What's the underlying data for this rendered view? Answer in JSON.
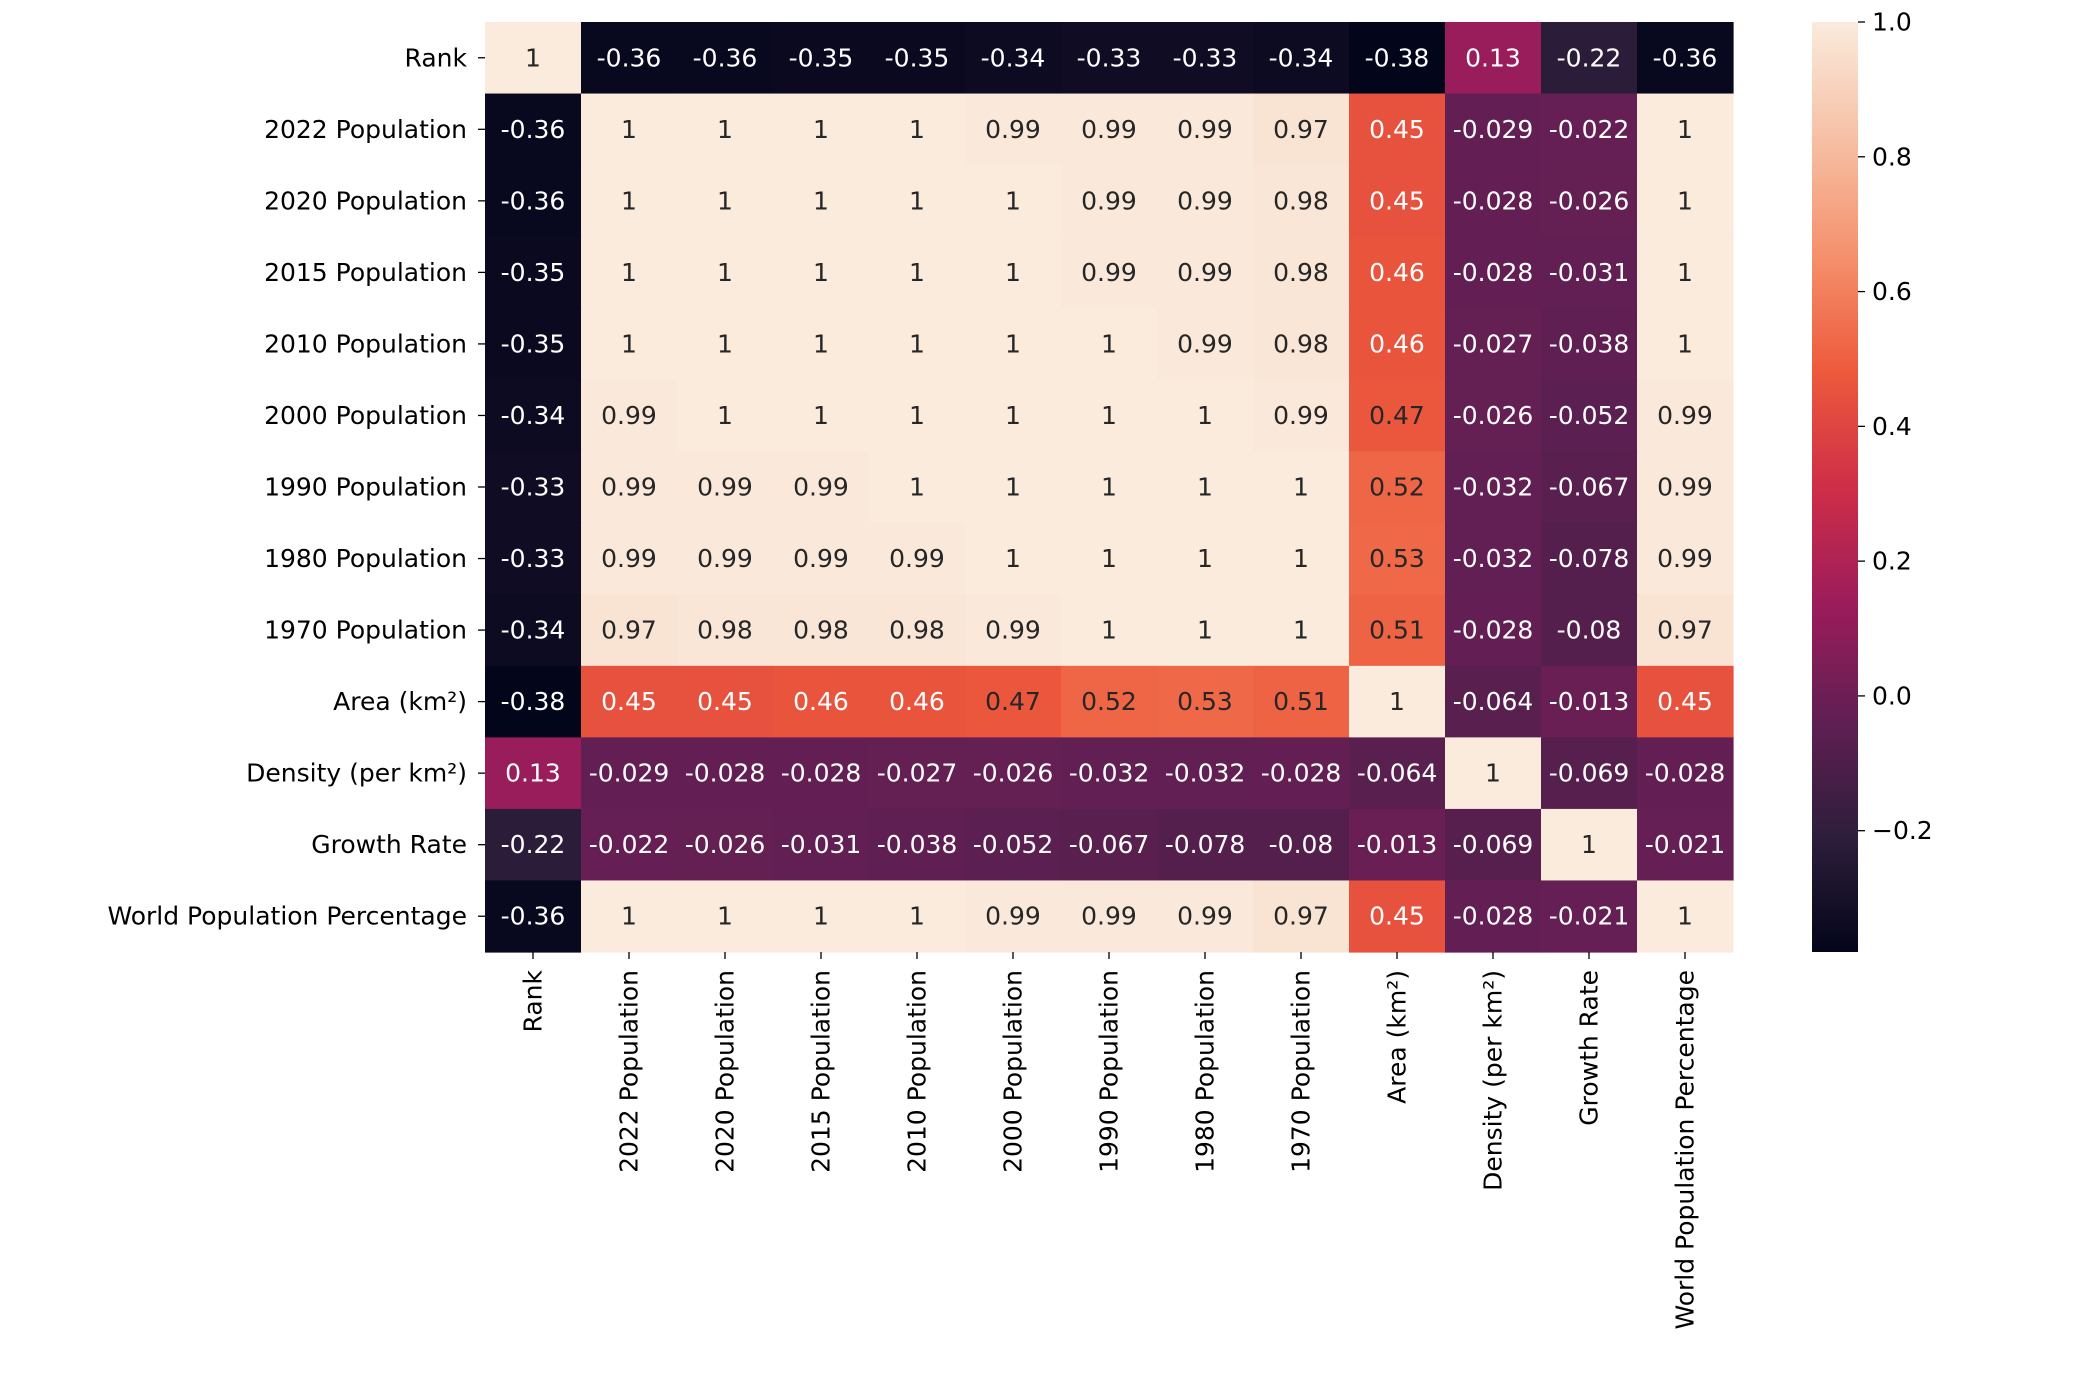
{
  "chart_data": {
    "type": "heatmap",
    "title": "",
    "xlabel": "",
    "ylabel": "",
    "rows": [
      "Rank",
      "2022 Population",
      "2020 Population",
      "2015 Population",
      "2010 Population",
      "2000 Population",
      "1990 Population",
      "1980 Population",
      "1970 Population",
      "Area (km²)",
      "Density (per km²)",
      "Growth Rate",
      "World Population Percentage"
    ],
    "columns": [
      "Rank",
      "2022 Population",
      "2020 Population",
      "2015 Population",
      "2010 Population",
      "2000 Population",
      "1990 Population",
      "1980 Population",
      "1970 Population",
      "Area (km²)",
      "Density (per km²)",
      "Growth Rate",
      "World Population Percentage"
    ],
    "values": [
      [
        1,
        -0.36,
        -0.36,
        -0.35,
        -0.35,
        -0.34,
        -0.33,
        -0.33,
        -0.34,
        -0.38,
        0.13,
        -0.22,
        -0.36
      ],
      [
        -0.36,
        1,
        1,
        1,
        1,
        0.99,
        0.99,
        0.99,
        0.97,
        0.45,
        -0.029,
        -0.022,
        1
      ],
      [
        -0.36,
        1,
        1,
        1,
        1,
        1,
        0.99,
        0.99,
        0.98,
        0.45,
        -0.028,
        -0.026,
        1
      ],
      [
        -0.35,
        1,
        1,
        1,
        1,
        1,
        0.99,
        0.99,
        0.98,
        0.46,
        -0.028,
        -0.031,
        1
      ],
      [
        -0.35,
        1,
        1,
        1,
        1,
        1,
        1,
        0.99,
        0.98,
        0.46,
        -0.027,
        -0.038,
        1
      ],
      [
        -0.34,
        0.99,
        1,
        1,
        1,
        1,
        1,
        1,
        0.99,
        0.47,
        -0.026,
        -0.052,
        0.99
      ],
      [
        -0.33,
        0.99,
        0.99,
        0.99,
        1,
        1,
        1,
        1,
        1,
        0.52,
        -0.032,
        -0.067,
        0.99
      ],
      [
        -0.33,
        0.99,
        0.99,
        0.99,
        0.99,
        1,
        1,
        1,
        1,
        0.53,
        -0.032,
        -0.078,
        0.99
      ],
      [
        -0.34,
        0.97,
        0.98,
        0.98,
        0.98,
        0.99,
        1,
        1,
        1,
        0.51,
        -0.028,
        -0.08,
        0.97
      ],
      [
        -0.38,
        0.45,
        0.45,
        0.46,
        0.46,
        0.47,
        0.52,
        0.53,
        0.51,
        1,
        -0.064,
        -0.013,
        0.45
      ],
      [
        0.13,
        -0.029,
        -0.028,
        -0.028,
        -0.027,
        -0.026,
        -0.032,
        -0.032,
        -0.028,
        -0.064,
        1,
        -0.069,
        -0.028
      ],
      [
        -0.22,
        -0.022,
        -0.026,
        -0.031,
        -0.038,
        -0.052,
        -0.067,
        -0.078,
        -0.08,
        -0.013,
        -0.069,
        1,
        -0.021
      ],
      [
        -0.36,
        1,
        1,
        1,
        1,
        0.99,
        0.99,
        0.99,
        0.97,
        0.45,
        -0.028,
        -0.021,
        1
      ]
    ],
    "value_labels": [
      [
        "1",
        "-0.36",
        "-0.36",
        "-0.35",
        "-0.35",
        "-0.34",
        "-0.33",
        "-0.33",
        "-0.34",
        "-0.38",
        "0.13",
        "-0.22",
        "-0.36"
      ],
      [
        "-0.36",
        "1",
        "1",
        "1",
        "1",
        "0.99",
        "0.99",
        "0.99",
        "0.97",
        "0.45",
        "-0.029",
        "-0.022",
        "1"
      ],
      [
        "-0.36",
        "1",
        "1",
        "1",
        "1",
        "1",
        "0.99",
        "0.99",
        "0.98",
        "0.45",
        "-0.028",
        "-0.026",
        "1"
      ],
      [
        "-0.35",
        "1",
        "1",
        "1",
        "1",
        "1",
        "0.99",
        "0.99",
        "0.98",
        "0.46",
        "-0.028",
        "-0.031",
        "1"
      ],
      [
        "-0.35",
        "1",
        "1",
        "1",
        "1",
        "1",
        "1",
        "0.99",
        "0.98",
        "0.46",
        "-0.027",
        "-0.038",
        "1"
      ],
      [
        "-0.34",
        "0.99",
        "1",
        "1",
        "1",
        "1",
        "1",
        "1",
        "0.99",
        "0.47",
        "-0.026",
        "-0.052",
        "0.99"
      ],
      [
        "-0.33",
        "0.99",
        "0.99",
        "0.99",
        "1",
        "1",
        "1",
        "1",
        "1",
        "0.52",
        "-0.032",
        "-0.067",
        "0.99"
      ],
      [
        "-0.33",
        "0.99",
        "0.99",
        "0.99",
        "0.99",
        "1",
        "1",
        "1",
        "1",
        "0.53",
        "-0.032",
        "-0.078",
        "0.99"
      ],
      [
        "-0.34",
        "0.97",
        "0.98",
        "0.98",
        "0.98",
        "0.99",
        "1",
        "1",
        "1",
        "0.51",
        "-0.028",
        "-0.08",
        "0.97"
      ],
      [
        "-0.38",
        "0.45",
        "0.45",
        "0.46",
        "0.46",
        "0.47",
        "0.52",
        "0.53",
        "0.51",
        "1",
        "-0.064",
        "-0.013",
        "0.45"
      ],
      [
        "0.13",
        "-0.029",
        "-0.028",
        "-0.028",
        "-0.027",
        "-0.026",
        "-0.032",
        "-0.032",
        "-0.028",
        "-0.064",
        "1",
        "-0.069",
        "-0.028"
      ],
      [
        "-0.22",
        "-0.022",
        "-0.026",
        "-0.031",
        "-0.038",
        "-0.052",
        "-0.067",
        "-0.078",
        "-0.08",
        "-0.013",
        "-0.069",
        "1",
        "-0.021"
      ],
      [
        "-0.36",
        "1",
        "1",
        "1",
        "1",
        "0.99",
        "0.99",
        "0.99",
        "0.97",
        "0.45",
        "-0.028",
        "-0.021",
        "1"
      ]
    ],
    "colorbar": {
      "range": [
        -0.38,
        1.0
      ],
      "ticks": [
        1.0,
        0.8,
        0.6,
        0.4,
        0.2,
        0.0,
        -0.2
      ],
      "tick_labels": [
        "1.0",
        "0.8",
        "0.6",
        "0.4",
        "0.2",
        "0.0",
        "−0.2"
      ]
    },
    "colormap": {
      "name": "rocket",
      "stops": [
        "#03051a",
        "#2e1e3b",
        "#611f53",
        "#9c1c5b",
        "#cf2e47",
        "#ed5a3c",
        "#f5916d",
        "#f6c0a5",
        "#faebdd"
      ]
    },
    "text_colors": {
      "light": "#ffffff",
      "dark": "#262626"
    }
  }
}
